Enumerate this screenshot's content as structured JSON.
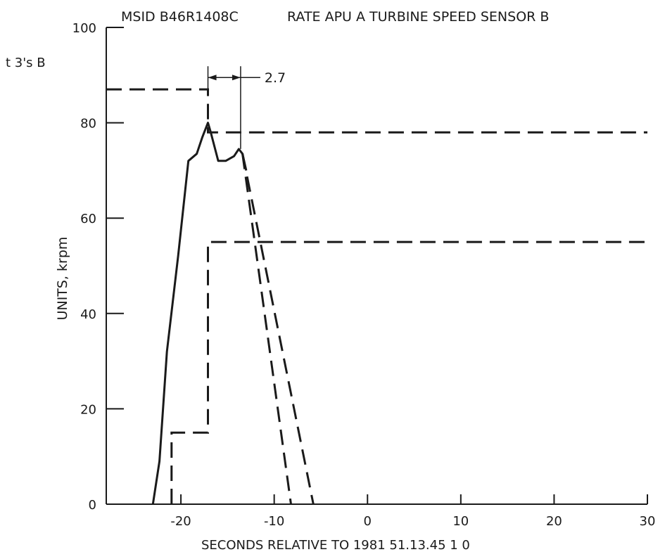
{
  "chart_data": {
    "type": "line",
    "title_msid": "MSID B46R1408C",
    "title": "RATE APU A TURBINE SPEED SENSOR B",
    "corner_label": "t 3's B",
    "xlabel": "SECONDS RELATIVE TO 1981 51.13.45   1    0",
    "ylabel": "UNITS, krpm",
    "xlim": [
      -28,
      30
    ],
    "ylim": [
      0,
      100
    ],
    "x_ticks": [
      -20,
      -10,
      0,
      10,
      20,
      30
    ],
    "x_tick_labels": [
      "-20",
      "-10",
      "0",
      "10",
      "20",
      "30"
    ],
    "y_ticks": [
      0,
      20,
      40,
      60,
      80,
      100
    ],
    "y_tick_labels": [
      "0",
      "20",
      "40",
      "60",
      "80",
      "100"
    ],
    "grid": false,
    "series": [
      {
        "style": "solid",
        "x": [
          -23,
          -22.3,
          -21.5,
          -20.3,
          -19.2,
          -18.3,
          -17.7,
          -17.1,
          -16.8,
          -16.0,
          -15.2,
          -14.3,
          -13.8,
          -13.4,
          -13.0
        ],
        "y": [
          0,
          9,
          32,
          52,
          72,
          73.5,
          77,
          80,
          78,
          72,
          72,
          73,
          74.5,
          73.5,
          70
        ]
      },
      {
        "style": "dashed",
        "x": [
          -13.4,
          -8.2
        ],
        "y": [
          73.5,
          0
        ]
      },
      {
        "style": "dashed",
        "x": [
          -13.4,
          -5.8
        ],
        "y": [
          73.5,
          0
        ]
      },
      {
        "style": "dashed",
        "x": [
          -28,
          -17.1,
          -17.1,
          30
        ],
        "y": [
          87,
          87,
          78,
          78
        ]
      },
      {
        "style": "dashed",
        "x": [
          -21,
          -21,
          -17.1,
          -17.1,
          30
        ],
        "y": [
          0,
          15,
          15,
          55,
          55
        ]
      }
    ],
    "annotations": [
      {
        "text": "2.7",
        "x_start": -17.1,
        "x_end": -13.6,
        "y": 89.5
      }
    ]
  }
}
